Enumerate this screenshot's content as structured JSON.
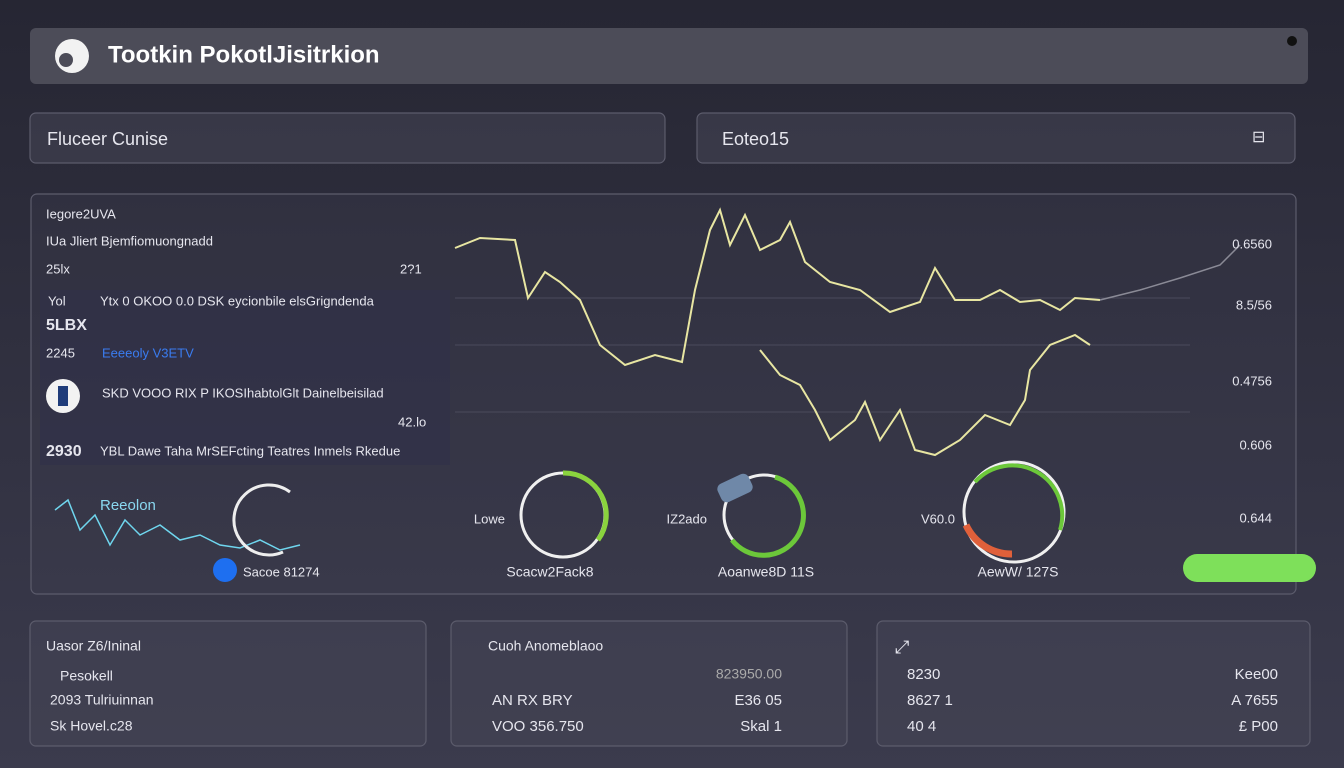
{
  "header": {
    "title": "Tootkin PokotlJisitrkion"
  },
  "fields": [
    "Fluceer Cunise",
    "Eoteo15"
  ],
  "panel": {
    "lines": [
      "Iegore2UVA",
      "IUa Jliert Bjemfiomuongnadd",
      "25lx",
      "2?1",
      "Yol",
      "Ytx 0 OKOO 0.0 DSK eycionbile elsGrigndenda",
      "5LBX",
      "2245",
      "Eeeeoly V3ETV",
      "SKD VOOO RIX P IKOSIhabtolGlt Dainelbeisilad",
      "42.lo",
      "2930",
      "YBL Dawe Taha MrSEFcting Teatres Inmels Rkedue",
      "Reeolon",
      "Sacoe 81274"
    ],
    "axis_labels": [
      "0.6560",
      "8.5/56",
      "0.4756",
      "0.606",
      "0.644"
    ],
    "gauges": [
      {
        "side": "Lowe",
        "label": "Scacw2Fack8"
      },
      {
        "side": "IZ2ado",
        "label": "Aoanwe8D 11S"
      },
      {
        "side": "V60.0",
        "label": "AewW/ 127S"
      }
    ]
  },
  "cards": [
    {
      "title": "Uasor Z6/Ininal",
      "rows": [
        "Pesokell",
        "2093 Tulriuinnan",
        "Sk Hovel.c28"
      ]
    },
    {
      "title": "Cuoh Anomeblaoo",
      "rows": [
        [
          "823950.00"
        ],
        [
          "AN RX BRY",
          "E36 05"
        ],
        [
          "VOO 356.750",
          "Skal 1"
        ]
      ]
    },
    {
      "rows": [
        [
          "8230",
          "Kee00"
        ],
        [
          "8627 1",
          "A 7655"
        ],
        [
          "40 4",
          "£ P00"
        ]
      ]
    }
  ]
}
